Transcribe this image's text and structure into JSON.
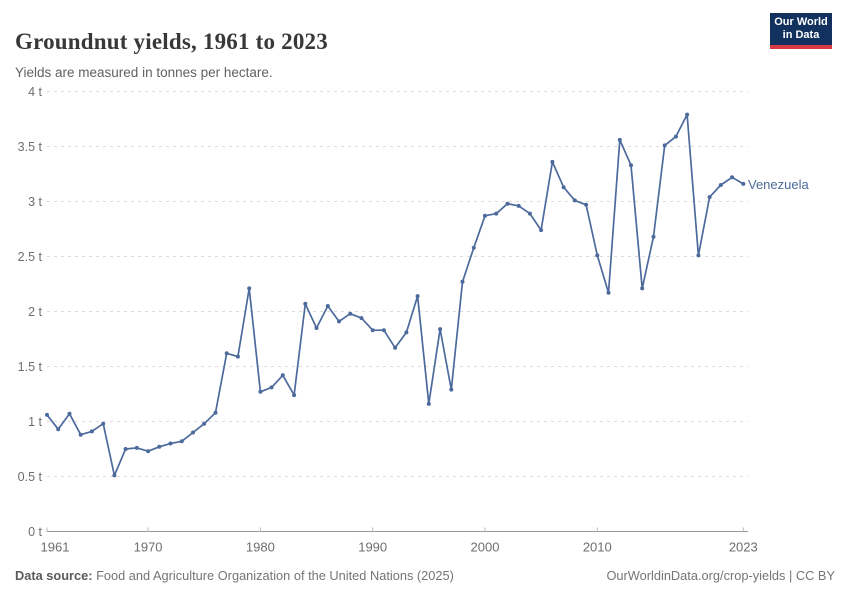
{
  "header": {
    "title": "Groundnut yields, 1961 to 2023",
    "subtitle": "Yields are measured in tonnes per hectare.",
    "logo": {
      "line1": "Our World",
      "line2": "in Data"
    }
  },
  "footer": {
    "source_label": "Data source:",
    "source_text": " Food and Agriculture Organization of the United Nations (2025)",
    "link_text": "OurWorldinData.org/crop-yields | CC BY"
  },
  "chart_data": {
    "type": "line",
    "title": "Groundnut yields, 1961 to 2023",
    "subtitle": "Yields are measured in tonnes per hectare.",
    "unit": "tonnes per hectare",
    "xlim": [
      1961,
      2023
    ],
    "ylim": [
      0,
      4
    ],
    "grid": "horizontal-dashed",
    "legend": "end-of-line-label",
    "xticks": [
      1961,
      1970,
      1980,
      1990,
      2000,
      2010,
      2023
    ],
    "ytick_values": [
      0,
      0.5,
      1,
      1.5,
      2,
      2.5,
      3,
      3.5,
      4
    ],
    "ytick_labels": [
      "0 t",
      "0.5 t",
      "1 t",
      "1.5 t",
      "2 t",
      "2.5 t",
      "3 t",
      "3.5 t",
      "4 t"
    ],
    "x": [
      1961,
      1962,
      1963,
      1964,
      1965,
      1966,
      1967,
      1968,
      1969,
      1970,
      1971,
      1972,
      1973,
      1974,
      1975,
      1976,
      1977,
      1978,
      1979,
      1980,
      1981,
      1982,
      1983,
      1984,
      1985,
      1986,
      1987,
      1988,
      1989,
      1990,
      1991,
      1992,
      1993,
      1994,
      1995,
      1996,
      1997,
      1998,
      1999,
      2000,
      2001,
      2002,
      2003,
      2004,
      2005,
      2006,
      2007,
      2008,
      2009,
      2010,
      2011,
      2012,
      2013,
      2014,
      2015,
      2016,
      2017,
      2018,
      2019,
      2020,
      2021,
      2022,
      2023
    ],
    "series": [
      {
        "name": "Venezuela",
        "color": "#4C6A9C",
        "values": [
          1.06,
          0.93,
          1.07,
          0.88,
          0.91,
          0.98,
          0.51,
          0.75,
          0.76,
          0.73,
          0.77,
          0.8,
          0.82,
          0.9,
          0.98,
          1.08,
          1.62,
          1.59,
          2.21,
          1.27,
          1.31,
          1.42,
          1.24,
          2.07,
          1.85,
          2.05,
          1.91,
          1.98,
          1.94,
          1.83,
          1.83,
          1.67,
          1.81,
          2.14,
          1.16,
          1.84,
          1.29,
          2.27,
          2.58,
          2.87,
          2.89,
          2.98,
          2.96,
          2.89,
          2.74,
          3.36,
          3.13,
          3.01,
          2.97,
          2.51,
          2.17,
          3.56,
          3.33,
          2.21,
          2.68,
          3.51,
          3.59,
          3.79,
          2.51,
          3.04,
          3.15,
          3.22,
          3.16
        ]
      }
    ]
  },
  "colors": {
    "accent": "#4C6A9C",
    "grid": "#dcdcdc",
    "axis": "#999999",
    "tick_text": "#6e6e6e",
    "logo_bg": "#12315f",
    "logo_red": "#d73a45"
  }
}
